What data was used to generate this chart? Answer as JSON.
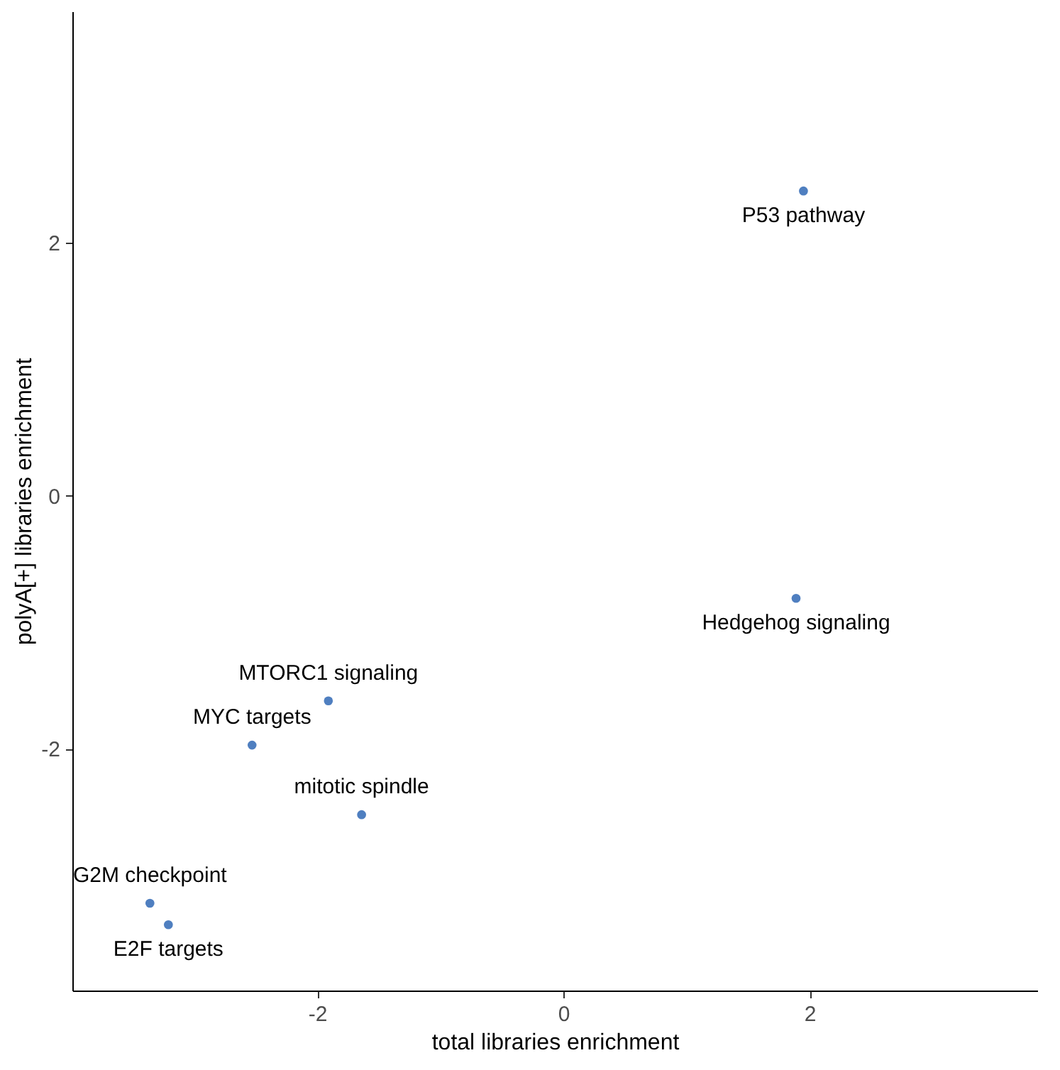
{
  "chart_data": {
    "type": "scatter",
    "xlabel": "total libraries enrichment",
    "ylabel": "polyA[+] libraries enrichment",
    "xlim": [
      -3.99,
      3.85
    ],
    "ylim": [
      -3.91,
      3.83
    ],
    "xticks": [
      -2,
      0,
      2
    ],
    "yticks": [
      -2,
      0,
      2
    ],
    "grid": false,
    "marker": "circle",
    "series": [
      {
        "color": "#4f7fc0",
        "x": [
          1.95,
          1.89,
          -1.91,
          -2.53,
          -1.64,
          -3.36,
          -3.21
        ],
        "values": [
          2.41,
          -0.81,
          -1.62,
          -1.97,
          -2.52,
          -3.22,
          -3.39
        ]
      }
    ],
    "annotations": [
      {
        "text": "P53 pathway",
        "x": 1.95,
        "y": 2.41
      },
      {
        "text": "Hedgehog signaling",
        "x": 1.89,
        "y": -0.81
      },
      {
        "text": "MTORC1 signaling",
        "x": -1.91,
        "y": -1.62
      },
      {
        "text": "MYC targets",
        "x": -2.53,
        "y": -1.97
      },
      {
        "text": "mitotic spindle",
        "x": -1.64,
        "y": -2.52
      },
      {
        "text": "G2M checkpoint",
        "x": -3.36,
        "y": -3.22
      },
      {
        "text": "E2F targets",
        "x": -3.21,
        "y": -3.39
      }
    ]
  }
}
